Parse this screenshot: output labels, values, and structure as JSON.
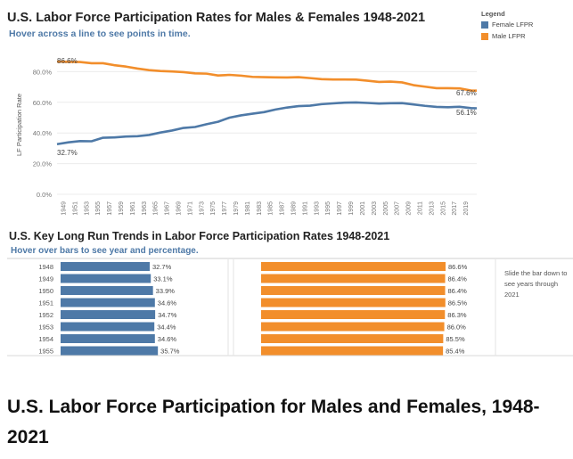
{
  "line_chart": {
    "title": "U.S. Labor Force Participation Rates for Males & Females 1948-2021",
    "subtitle": "Hover across a line to see points in time.",
    "y_axis_label": "LF Participation Rate",
    "legend": {
      "title": "Legend",
      "items": [
        {
          "label": "Female LFPR",
          "color": "#4e79a7"
        },
        {
          "label": "Male LFPR",
          "color": "#f28e2b"
        }
      ]
    },
    "annotations": {
      "male_start": "86.6%",
      "female_start": "32.7%",
      "male_end": "67.6%",
      "female_end": "56.1%"
    }
  },
  "bar_chart": {
    "title": "U.S. Key Long Run Trends in Labor Force Participation Rates 1948-2021",
    "subtitle": "Hover over bars to see year and percentage.",
    "side_note": "Slide the bar down to see years through 2021",
    "rows": [
      {
        "year": "1948",
        "female_label": "32.7%",
        "male_label": "86.6%"
      },
      {
        "year": "1949",
        "female_label": "33.1%",
        "male_label": "86.4%"
      },
      {
        "year": "1950",
        "female_label": "33.9%",
        "male_label": "86.4%"
      },
      {
        "year": "1951",
        "female_label": "34.6%",
        "male_label": "86.5%"
      },
      {
        "year": "1952",
        "female_label": "34.7%",
        "male_label": "86.3%"
      },
      {
        "year": "1953",
        "female_label": "34.4%",
        "male_label": "86.0%"
      },
      {
        "year": "1954",
        "female_label": "34.6%",
        "male_label": "85.5%"
      },
      {
        "year": "1955",
        "female_label": "35.7%",
        "male_label": "85.4%"
      }
    ]
  },
  "caption": "U.S. Labor Force Participation for Males and Females, 1948-2021",
  "chart_data": [
    {
      "type": "line",
      "title": "U.S. Labor Force Participation Rates for Males & Females 1948-2021",
      "ylabel": "LF Participation Rate",
      "ylim": [
        0,
        100
      ],
      "yticks": [
        "0.0%",
        "20.0%",
        "40.0%",
        "60.0%",
        "80.0%"
      ],
      "xticks": [
        "1949",
        "1951",
        "1953",
        "1955",
        "1957",
        "1959",
        "1961",
        "1963",
        "1965",
        "1967",
        "1969",
        "1971",
        "1973",
        "1975",
        "1977",
        "1979",
        "1981",
        "1983",
        "1985",
        "1987",
        "1989",
        "1991",
        "1993",
        "1995",
        "1997",
        "1999",
        "2001",
        "2003",
        "2005",
        "2007",
        "2009",
        "2011",
        "2013",
        "2015",
        "2017",
        "2019"
      ],
      "grid": true,
      "legend": "top-right",
      "x": [
        1948,
        1950,
        1952,
        1954,
        1956,
        1958,
        1960,
        1962,
        1964,
        1966,
        1968,
        1970,
        1972,
        1974,
        1976,
        1978,
        1980,
        1982,
        1984,
        1986,
        1988,
        1990,
        1992,
        1994,
        1996,
        1998,
        2000,
        2002,
        2004,
        2006,
        2008,
        2010,
        2012,
        2014,
        2016,
        2018,
        2020,
        2021
      ],
      "series": [
        {
          "name": "Female LFPR",
          "color": "#4e79a7",
          "values": [
            32.7,
            33.9,
            34.7,
            34.6,
            36.9,
            37.1,
            37.7,
            37.9,
            38.7,
            40.3,
            41.6,
            43.3,
            43.9,
            45.7,
            47.3,
            50.0,
            51.5,
            52.6,
            53.6,
            55.3,
            56.6,
            57.5,
            57.8,
            58.8,
            59.3,
            59.8,
            59.9,
            59.6,
            59.2,
            59.4,
            59.5,
            58.6,
            57.7,
            57.0,
            56.8,
            57.1,
            56.2,
            56.1
          ]
        },
        {
          "name": "Male LFPR",
          "color": "#f28e2b",
          "values": [
            86.6,
            86.4,
            86.3,
            85.5,
            85.5,
            84.2,
            83.3,
            82.0,
            81.0,
            80.4,
            80.1,
            79.7,
            78.9,
            78.7,
            77.5,
            77.9,
            77.4,
            76.6,
            76.4,
            76.3,
            76.2,
            76.4,
            75.8,
            75.1,
            74.9,
            74.9,
            74.8,
            74.1,
            73.3,
            73.5,
            73.0,
            71.2,
            70.2,
            69.2,
            69.2,
            69.1,
            67.7,
            67.6
          ]
        }
      ]
    },
    {
      "type": "bar",
      "title": "U.S. Key Long Run Trends in Labor Force Participation Rates 1948-2021",
      "categories": [
        "1948",
        "1949",
        "1950",
        "1951",
        "1952",
        "1953",
        "1954",
        "1955"
      ],
      "series": [
        {
          "name": "Female LFPR",
          "color": "#4e79a7",
          "values": [
            32.7,
            33.1,
            33.9,
            34.6,
            34.7,
            34.4,
            34.6,
            35.7
          ]
        },
        {
          "name": "Male LFPR",
          "color": "#f28e2b",
          "values": [
            86.6,
            86.4,
            86.4,
            86.5,
            86.3,
            86.0,
            85.5,
            85.4
          ]
        }
      ]
    }
  ]
}
